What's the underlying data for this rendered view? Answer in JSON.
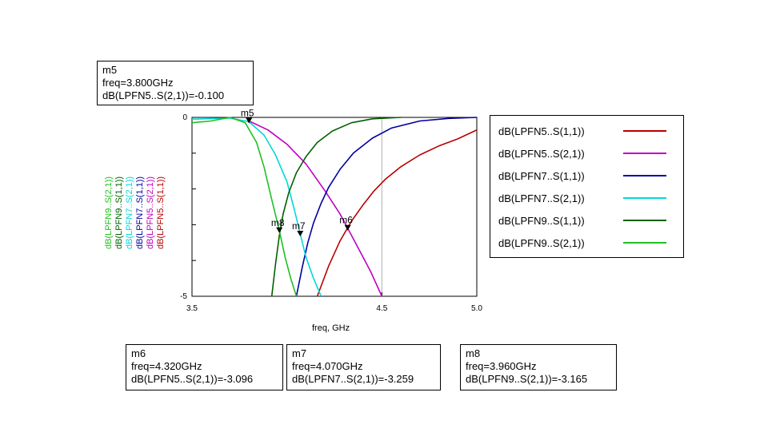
{
  "chart_data": {
    "type": "line",
    "xlabel": "freq, GHz",
    "xlim": [
      3.5,
      5.0
    ],
    "ylim": [
      -5,
      0
    ],
    "x_ticks": [
      "3.5",
      "4.5",
      "5.0"
    ],
    "y_ticks": [
      "0",
      "-5"
    ],
    "grid": true,
    "legend_position": "right",
    "series": [
      {
        "name": "dB(LPFN5..S(1,1))",
        "color": "#b80000",
        "x": [
          4.16,
          4.22,
          4.28,
          4.34,
          4.4,
          4.46,
          4.52,
          4.6,
          4.7,
          4.8,
          4.9,
          5.0
        ],
        "y": [
          -5.0,
          -4.15,
          -3.45,
          -2.9,
          -2.45,
          -2.05,
          -1.72,
          -1.38,
          -1.05,
          -0.8,
          -0.6,
          -0.35
        ]
      },
      {
        "name": "dB(LPFN5..S(2,1))",
        "color": "#c000c0",
        "x": [
          3.8,
          3.9,
          4.0,
          4.1,
          4.2,
          4.28,
          4.32,
          4.38,
          4.44,
          4.5
        ],
        "y": [
          -0.1,
          -0.35,
          -0.75,
          -1.3,
          -2.05,
          -2.7,
          -3.096,
          -3.7,
          -4.3,
          -5.0
        ]
      },
      {
        "name": "dB(LPFN7..S(1,1))",
        "color": "#0000a0",
        "x": [
          4.05,
          4.08,
          4.11,
          4.14,
          4.18,
          4.22,
          4.28,
          4.35,
          4.45,
          4.55,
          4.7,
          4.85,
          5.0
        ],
        "y": [
          -5.0,
          -4.2,
          -3.5,
          -2.95,
          -2.4,
          -1.95,
          -1.45,
          -1.0,
          -0.58,
          -0.3,
          -0.1,
          -0.03,
          0.0
        ]
      },
      {
        "name": "dB(LPFN7..S(2,1))",
        "color": "#00d8d8",
        "x": [
          3.5,
          3.7,
          3.8,
          3.88,
          3.94,
          4.0,
          4.04,
          4.07,
          4.1,
          4.14,
          4.18
        ],
        "y": [
          -0.05,
          -0.02,
          -0.12,
          -0.5,
          -1.05,
          -1.8,
          -2.6,
          -3.259,
          -3.9,
          -4.5,
          -5.0
        ]
      },
      {
        "name": "dB(LPFN9..S(1,1))",
        "color": "#006000",
        "x": [
          3.92,
          3.94,
          3.96,
          3.98,
          4.01,
          4.05,
          4.1,
          4.16,
          4.24,
          4.34,
          4.45,
          4.6
        ],
        "y": [
          -5.0,
          -4.1,
          -3.3,
          -2.7,
          -2.1,
          -1.55,
          -1.1,
          -0.7,
          -0.38,
          -0.15,
          -0.04,
          0.0
        ]
      },
      {
        "name": "dB(LPFN9..S(2,1))",
        "color": "#20c020",
        "x": [
          3.5,
          3.6,
          3.7,
          3.78,
          3.84,
          3.88,
          3.92,
          3.96,
          3.99,
          4.02,
          4.05
        ],
        "y": [
          -0.15,
          -0.1,
          0.0,
          -0.15,
          -0.7,
          -1.4,
          -2.3,
          -3.165,
          -3.9,
          -4.5,
          -5.0
        ]
      }
    ],
    "markers": [
      {
        "name": "m5",
        "freq": 3.8,
        "value": -0.1
      },
      {
        "name": "m6",
        "freq": 4.32,
        "value": -3.096
      },
      {
        "name": "m7",
        "freq": 4.07,
        "value": -3.259
      },
      {
        "name": "m8",
        "freq": 3.96,
        "value": -3.165
      }
    ]
  },
  "marker_boxes": {
    "m5": {
      "title": "m5",
      "freq": "freq=3.800GHz",
      "val": "dB(LPFN5..S(2,1))=-0.100"
    },
    "m6": {
      "title": "m6",
      "freq": "freq=4.320GHz",
      "val": "dB(LPFN5..S(2,1))=-3.096"
    },
    "m7": {
      "title": "m7",
      "freq": "freq=4.070GHz",
      "val": "dB(LPFN7..S(2,1))=-3.259"
    },
    "m8": {
      "title": "m8",
      "freq": "freq=3.960GHz",
      "val": "dB(LPFN9..S(2,1))=-3.165"
    }
  }
}
